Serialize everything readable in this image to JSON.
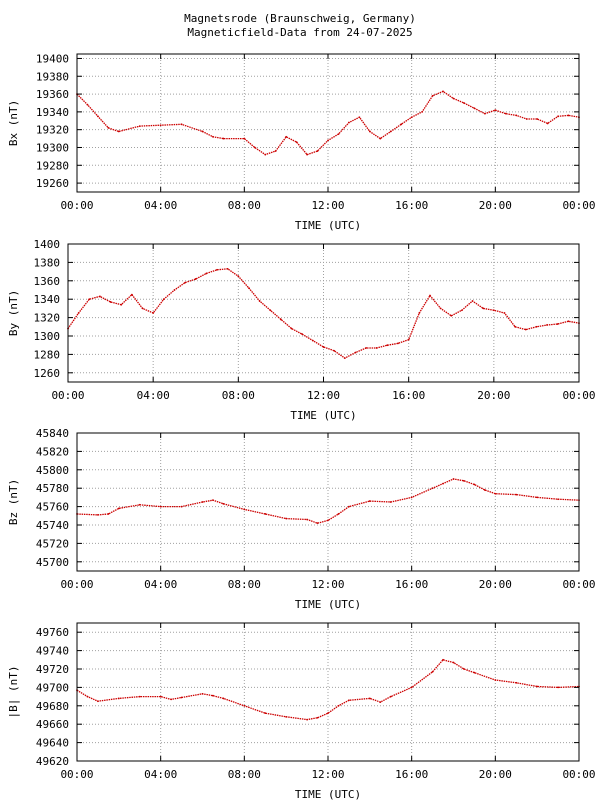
{
  "header": {
    "title_line1": "Magnetsrode (Braunschweig, Germany)",
    "title_line2": "Magneticfield-Data from 24-07-2025"
  },
  "colors": {
    "series": "#cc0000",
    "grid": "#a0a0a0",
    "axis": "#000000",
    "background": "#ffffff"
  },
  "chart_data": [
    {
      "type": "line",
      "ylabel": "Bx (nT)",
      "xlabel": "TIME (UTC)",
      "xticks": [
        "00:00",
        "04:00",
        "08:00",
        "12:00",
        "16:00",
        "20:00",
        "00:00"
      ],
      "xlim": [
        0,
        24
      ],
      "yticks": [
        19260,
        19280,
        19300,
        19320,
        19340,
        19360,
        19380,
        19400
      ],
      "ylim": [
        19250,
        19405
      ],
      "grid": true,
      "x": [
        0,
        0.5,
        1,
        1.5,
        2,
        3,
        4,
        5,
        6,
        6.5,
        7,
        8,
        8.5,
        9,
        9.5,
        10,
        10.5,
        11,
        11.5,
        12,
        12.5,
        13,
        13.5,
        14,
        14.5,
        15,
        15.5,
        16,
        16.5,
        17,
        17.5,
        18,
        18.5,
        19,
        19.5,
        20,
        20.5,
        21,
        21.5,
        22,
        22.5,
        23,
        23.5,
        24
      ],
      "y": [
        19360,
        19348,
        19335,
        19322,
        19318,
        19324,
        19325,
        19326,
        19318,
        19312,
        19310,
        19310,
        19300,
        19292,
        19296,
        19312,
        19306,
        19292,
        19296,
        19308,
        19315,
        19328,
        19334,
        19318,
        19310,
        19318,
        19326,
        19334,
        19340,
        19358,
        19363,
        19355,
        19350,
        19344,
        19338,
        19342,
        19338,
        19336,
        19332,
        19332,
        19327,
        19335,
        19336,
        19334
      ]
    },
    {
      "type": "line",
      "ylabel": "By (nT)",
      "xlabel": "TIME (UTC)",
      "xticks": [
        "00:00",
        "04:00",
        "08:00",
        "12:00",
        "16:00",
        "20:00",
        "00:00"
      ],
      "xlim": [
        0,
        24
      ],
      "yticks": [
        1260,
        1280,
        1300,
        1320,
        1340,
        1360,
        1380,
        1400
      ],
      "ylim": [
        1250,
        1400
      ],
      "grid": true,
      "x": [
        0,
        0.5,
        1,
        1.5,
        2,
        2.5,
        3,
        3.5,
        4,
        4.5,
        5,
        5.5,
        6,
        6.5,
        7,
        7.5,
        8,
        8.5,
        9,
        9.5,
        10,
        10.5,
        11,
        11.5,
        12,
        12.5,
        13,
        13.5,
        14,
        14.5,
        15,
        15.5,
        16,
        16.5,
        17,
        17.5,
        18,
        18.5,
        19,
        19.5,
        20,
        20.5,
        21,
        21.5,
        22,
        22.5,
        23,
        23.5,
        24
      ],
      "y": [
        1308,
        1325,
        1340,
        1343,
        1337,
        1334,
        1345,
        1330,
        1325,
        1340,
        1350,
        1358,
        1362,
        1368,
        1372,
        1373,
        1365,
        1352,
        1338,
        1328,
        1318,
        1308,
        1302,
        1295,
        1288,
        1284,
        1276,
        1282,
        1287,
        1287,
        1290,
        1292,
        1296,
        1325,
        1344,
        1330,
        1322,
        1328,
        1338,
        1330,
        1328,
        1325,
        1310,
        1307,
        1310,
        1312,
        1313,
        1316,
        1314
      ]
    },
    {
      "type": "line",
      "ylabel": "Bz (nT)",
      "xlabel": "TIME (UTC)",
      "xticks": [
        "00:00",
        "04:00",
        "08:00",
        "12:00",
        "16:00",
        "20:00",
        "00:00"
      ],
      "xlim": [
        0,
        24
      ],
      "yticks": [
        45700,
        45720,
        45740,
        45760,
        45780,
        45800,
        45820,
        45840
      ],
      "ylim": [
        45690,
        45840
      ],
      "grid": true,
      "x": [
        0,
        1,
        1.5,
        2,
        3,
        4,
        5,
        6,
        6.5,
        7,
        8,
        9,
        10,
        11,
        11.5,
        12,
        12.5,
        13,
        14,
        15,
        16,
        17,
        17.5,
        18,
        18.5,
        19,
        19.5,
        20,
        21,
        22,
        23,
        24
      ],
      "y": [
        45752,
        45751,
        45752,
        45758,
        45762,
        45760,
        45760,
        45765,
        45767,
        45763,
        45757,
        45752,
        45747,
        45746,
        45742,
        45745,
        45752,
        45760,
        45766,
        45765,
        45770,
        45780,
        45785,
        45790,
        45788,
        45784,
        45778,
        45774,
        45773,
        45770,
        45768,
        45767
      ]
    },
    {
      "type": "line",
      "ylabel": "|B| (nT)",
      "xlabel": "TIME (UTC)",
      "xticks": [
        "00:00",
        "04:00",
        "08:00",
        "12:00",
        "16:00",
        "20:00",
        "00:00"
      ],
      "xlim": [
        0,
        24
      ],
      "yticks": [
        49620,
        49640,
        49660,
        49680,
        49700,
        49720,
        49740,
        49760
      ],
      "ylim": [
        49620,
        49770
      ],
      "grid": true,
      "x": [
        0,
        0.5,
        1,
        2,
        3,
        4,
        4.5,
        5,
        6,
        6.5,
        7,
        8,
        9,
        10,
        11,
        11.5,
        12,
        12.5,
        13,
        14,
        14.5,
        15,
        16,
        17,
        17.5,
        18,
        18.5,
        19,
        20,
        21,
        22,
        23,
        24
      ],
      "y": [
        49697,
        49690,
        49685,
        49688,
        49690,
        49690,
        49687,
        49689,
        49693,
        49691,
        49688,
        49680,
        49672,
        49668,
        49665,
        49667,
        49672,
        49680,
        49686,
        49688,
        49684,
        49690,
        49700,
        49717,
        49730,
        49727,
        49720,
        49716,
        49708,
        49705,
        49701,
        49700,
        49701
      ]
    }
  ]
}
